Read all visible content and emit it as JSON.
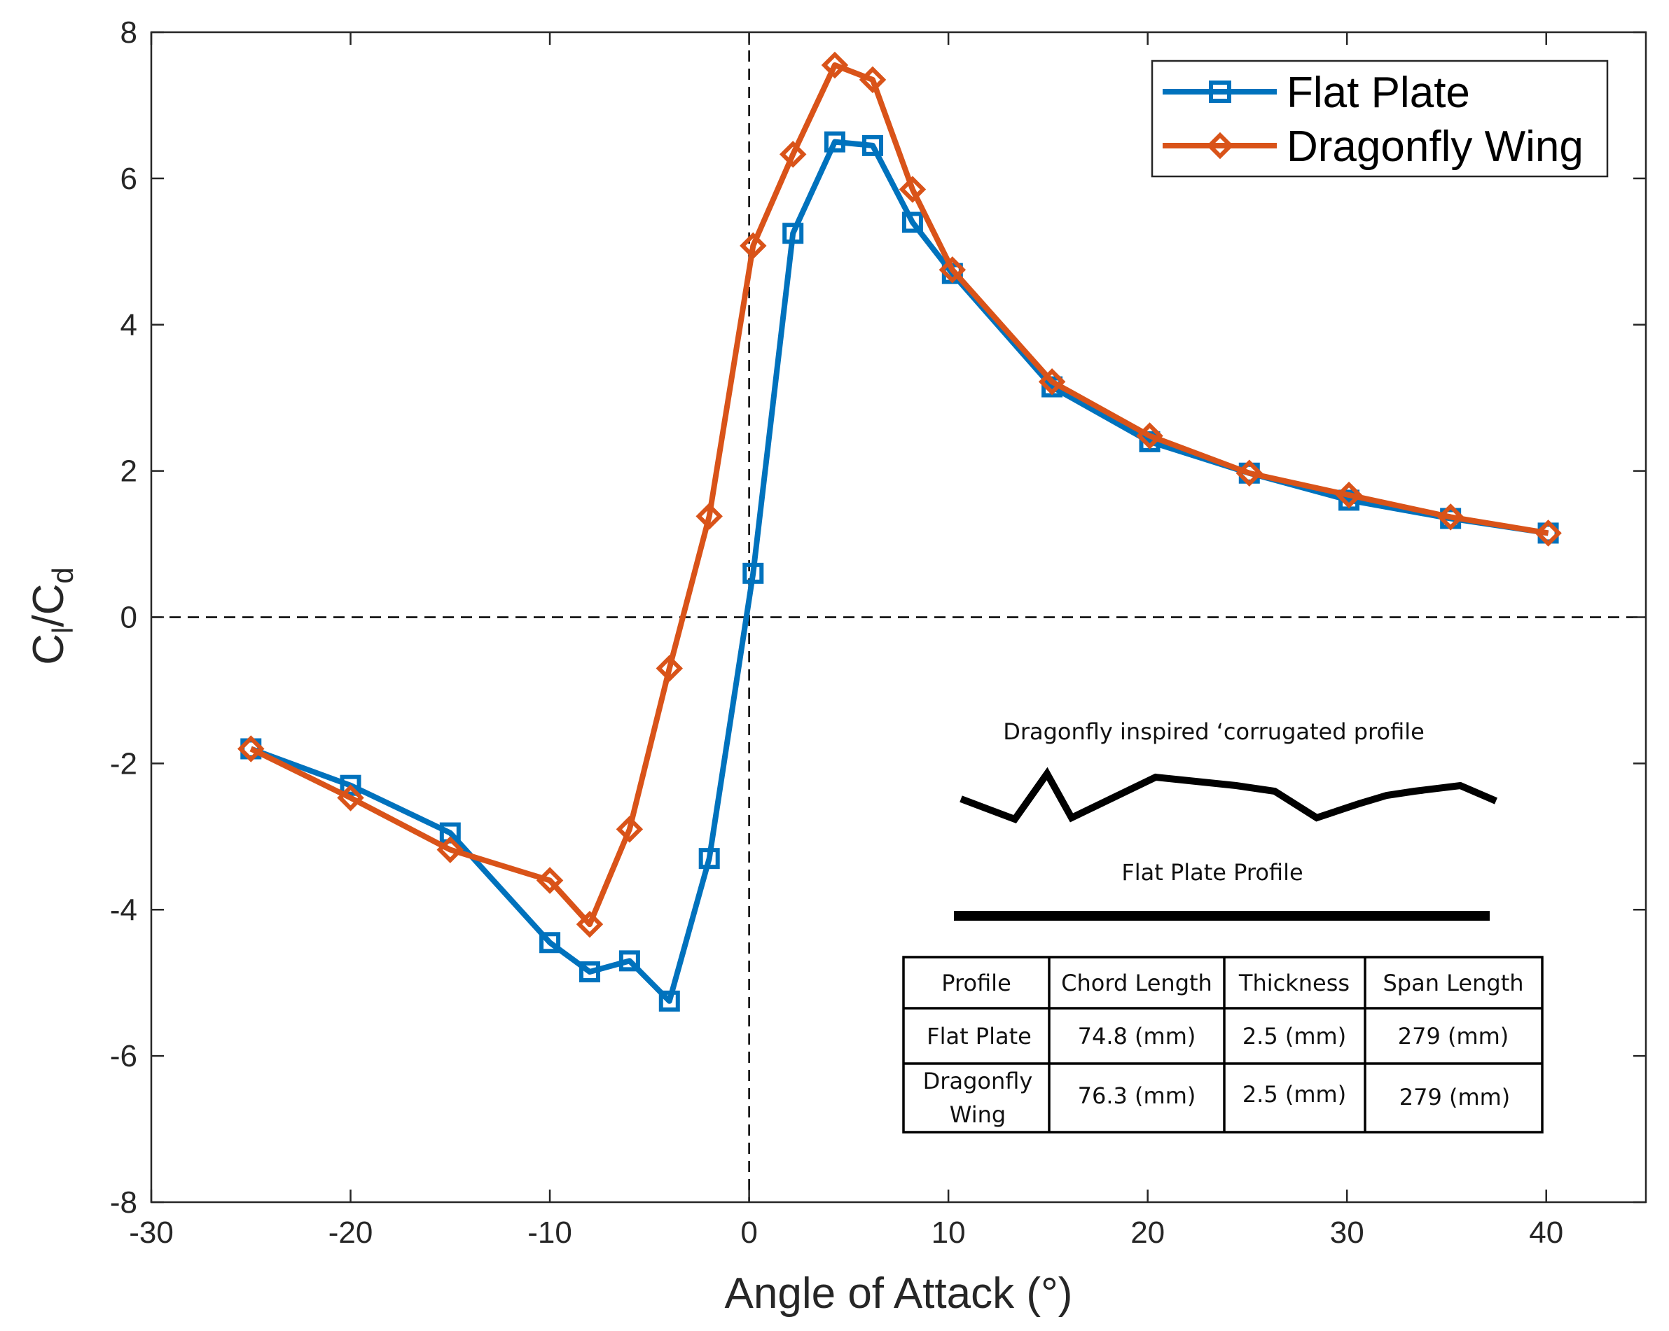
{
  "chart_data": {
    "type": "line",
    "title": "",
    "xlabel": "Angle of Attack (°)",
    "ylabel_main": "C",
    "ylabel_sub1": "l",
    "ylabel_slash": "/C",
    "ylabel_sub2": "d",
    "xlim": [
      -30,
      45
    ],
    "ylim": [
      -8,
      8
    ],
    "xticks": [
      -30,
      -20,
      -10,
      0,
      10,
      20,
      30,
      40
    ],
    "yticks": [
      -8,
      -6,
      -4,
      -2,
      0,
      2,
      4,
      6,
      8
    ],
    "xtick_labels": [
      "-30",
      "-20",
      "-10",
      "0",
      "10",
      "20",
      "30",
      "40"
    ],
    "ytick_labels": [
      "-8",
      "-6",
      "-4",
      "-2",
      "0",
      "2",
      "4",
      "6",
      "8"
    ],
    "legend_position": "top-right",
    "reference_lines": [
      "x = 0 dashed",
      "y = 0 dashed"
    ],
    "series": [
      {
        "name": "Flat Plate",
        "color": "#0072BD",
        "marker": "square",
        "x": [
          -25,
          -20,
          -15,
          -10,
          -8,
          -6,
          -4,
          -2,
          0.2,
          2.2,
          4.3,
          6.2,
          8.2,
          10.2,
          15.2,
          20.1,
          25.1,
          30.1,
          35.2,
          40.1
        ],
        "y": [
          -1.8,
          -2.3,
          -2.95,
          -4.45,
          -4.85,
          -4.7,
          -5.25,
          -3.3,
          0.6,
          5.25,
          6.5,
          6.45,
          5.4,
          4.7,
          3.15,
          2.4,
          1.97,
          1.6,
          1.35,
          1.15
        ]
      },
      {
        "name": "Dragonfly Wing",
        "color": "#D95319",
        "marker": "diamond",
        "x": [
          -25,
          -20,
          -15,
          -10,
          -8,
          -6,
          -4,
          -2,
          0.2,
          2.2,
          4.3,
          6.2,
          8.2,
          10.2,
          15.2,
          20.1,
          25.1,
          30.1,
          35.2,
          40.1
        ],
        "y": [
          -1.8,
          -2.47,
          -3.18,
          -3.6,
          -4.2,
          -2.9,
          -0.7,
          1.38,
          5.08,
          6.33,
          7.55,
          7.35,
          5.85,
          4.75,
          3.22,
          2.48,
          1.97,
          1.67,
          1.37,
          1.15
        ]
      }
    ]
  },
  "inset": {
    "corrugated_label": "Dragonfly inspired ‘corrugated profile",
    "flat_label": "Flat Plate Profile",
    "table": {
      "headers": [
        "Profile",
        "Chord Length",
        "Thickness",
        "Span Length"
      ],
      "rows": [
        {
          "profile": [
            "Flat Plate"
          ],
          "chord": "74.8 (mm)",
          "thickness": "2.5 (mm)",
          "span": "279 (mm)"
        },
        {
          "profile": [
            "Dragonfly",
            "Wing"
          ],
          "chord": "76.3 (mm)",
          "thickness": "2.5 (mm)",
          "span": "279 (mm)"
        }
      ]
    }
  }
}
